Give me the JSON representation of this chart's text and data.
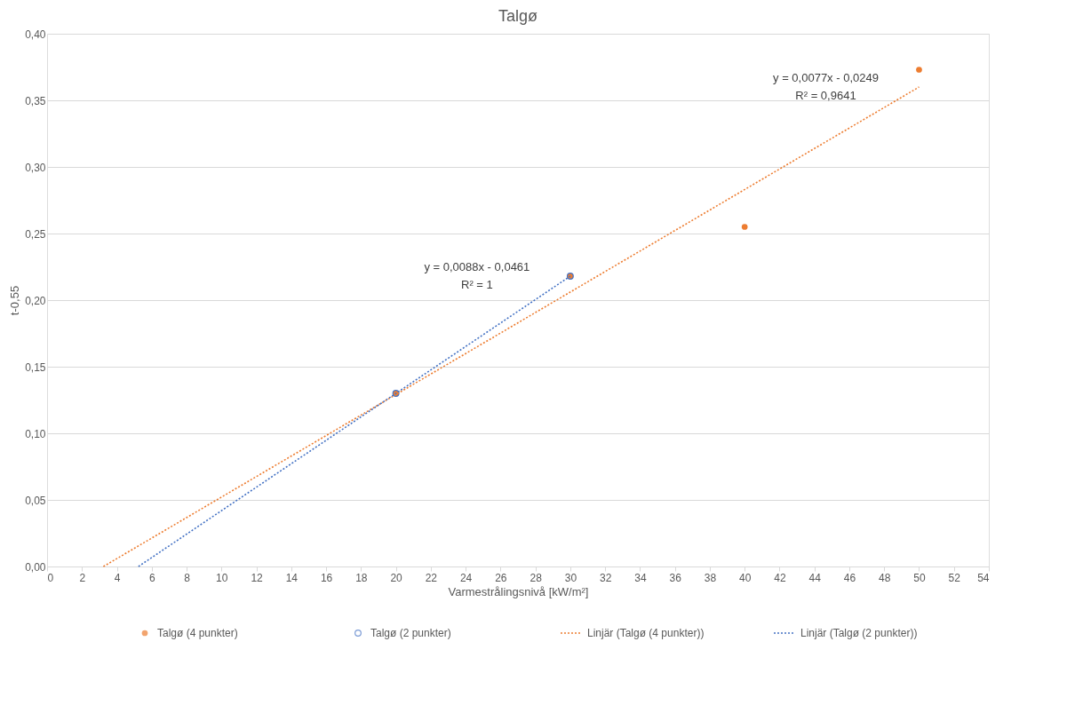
{
  "chart_data": {
    "type": "scatter",
    "title": "Talgø",
    "xlabel": "Varmestrålingsnivå [kW/m²]",
    "ylabel": "t-0,55",
    "xlim": [
      0,
      54
    ],
    "xticks": [
      0,
      2,
      4,
      6,
      8,
      10,
      12,
      14,
      16,
      18,
      20,
      22,
      24,
      26,
      28,
      30,
      32,
      34,
      36,
      38,
      40,
      42,
      44,
      46,
      48,
      50,
      52,
      54
    ],
    "ylim": [
      0,
      0.4
    ],
    "yticks": [
      {
        "value": 0,
        "label": "0,00"
      },
      {
        "value": 0.05,
        "label": "0,05"
      },
      {
        "value": 0.1,
        "label": "0,10"
      },
      {
        "value": 0.15,
        "label": "0,15"
      },
      {
        "value": 0.2,
        "label": "0,20"
      },
      {
        "value": 0.25,
        "label": "0,25"
      },
      {
        "value": 0.3,
        "label": "0,30"
      },
      {
        "value": 0.35,
        "label": "0,35"
      },
      {
        "value": 0.4,
        "label": "0,40"
      }
    ],
    "grid": "y",
    "legend": "bottom",
    "series": [
      {
        "name": "Talgø (4 punkter)",
        "color": "#ed7d31",
        "x": [
          20,
          30,
          40,
          50
        ],
        "values": [
          0.13,
          0.218,
          0.255,
          0.373
        ]
      },
      {
        "name": "Talgø (2 punkter)",
        "color": "#4472c4",
        "x": [
          20,
          30
        ],
        "values": [
          0.13,
          0.218
        ]
      },
      {
        "name": "Linjär (Talgø (4 punkter))",
        "type": "line",
        "line_style": "dotted",
        "color": "#ed7d31",
        "x": [
          3.23,
          50
        ],
        "values": [
          0,
          0.36
        ]
      },
      {
        "name": "Linjär (Talgø (2 punkter))",
        "type": "line",
        "line_style": "dotted",
        "color": "#4472c4",
        "x": [
          5.24,
          30
        ],
        "values": [
          0,
          0.218
        ]
      }
    ],
    "annotations": [
      "y = 0,0077x  - 0,0249",
      "R² = 0,9641",
      "y = 0,0088x  - 0,0461",
      "R² = 1"
    ]
  }
}
